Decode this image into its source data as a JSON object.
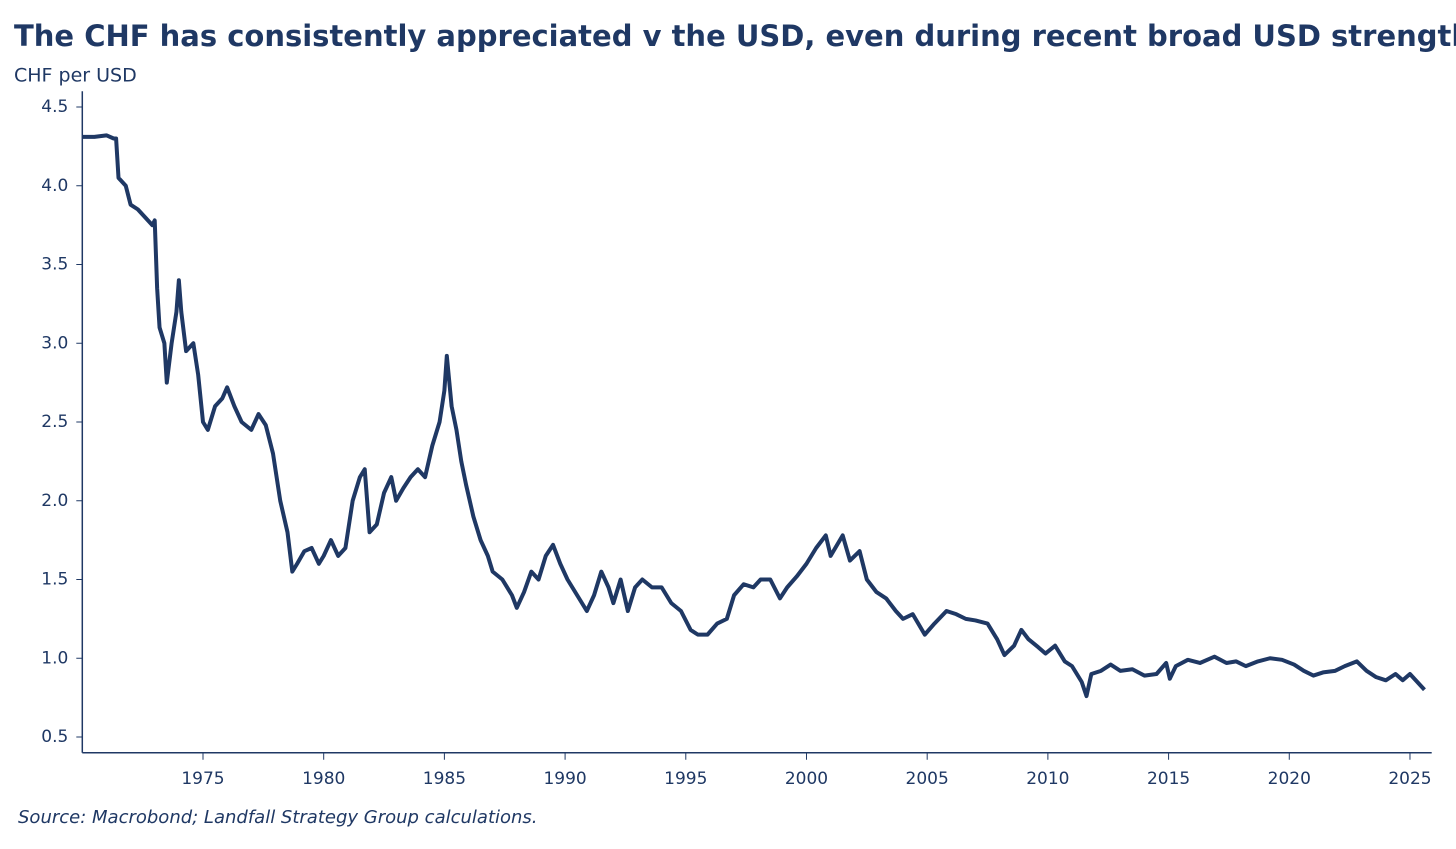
{
  "chart_data": {
    "type": "line",
    "title": "The CHF has consistently appreciated v the USD, even during recent broad USD strength",
    "y_label": "CHF per USD",
    "source": "Source: Macrobond; Landfall Strategy Group calculations.",
    "color": "#1f3864",
    "grid": false,
    "xlim": [
      1970,
      2025.9
    ],
    "ylim": [
      0.4,
      4.6
    ],
    "xticks": [
      1975,
      1980,
      1985,
      1990,
      1995,
      2000,
      2005,
      2010,
      2015,
      2020,
      2025
    ],
    "yticks": [
      0.5,
      {
        "value": 1,
        "label": "1.0"
      },
      1.5,
      {
        "value": 2,
        "label": "2.0"
      },
      2.5,
      {
        "value": 3,
        "label": "3.0"
      },
      3.5,
      {
        "value": 4,
        "label": "4.0"
      },
      4.5
    ],
    "x": [
      1970.0,
      1970.5,
      1971.0,
      1971.3,
      1971.4,
      1971.5,
      1971.8,
      1972.0,
      1972.3,
      1972.6,
      1972.9,
      1973.0,
      1973.1,
      1973.2,
      1973.4,
      1973.5,
      1973.7,
      1973.9,
      1974.0,
      1974.1,
      1974.3,
      1974.6,
      1974.8,
      1975.0,
      1975.2,
      1975.5,
      1975.8,
      1976.0,
      1976.3,
      1976.6,
      1977.0,
      1977.3,
      1977.6,
      1977.9,
      1978.2,
      1978.5,
      1978.7,
      1978.9,
      1979.2,
      1979.5,
      1979.8,
      1980.0,
      1980.3,
      1980.6,
      1980.9,
      1981.2,
      1981.5,
      1981.7,
      1981.9,
      1982.2,
      1982.5,
      1982.8,
      1983.0,
      1983.3,
      1983.6,
      1983.9,
      1984.2,
      1984.5,
      1984.8,
      1985.0,
      1985.1,
      1985.3,
      1985.5,
      1985.7,
      1985.9,
      1986.2,
      1986.5,
      1986.8,
      1987.0,
      1987.4,
      1987.8,
      1988.0,
      1988.3,
      1988.6,
      1988.9,
      1989.2,
      1989.5,
      1989.8,
      1990.1,
      1990.5,
      1990.9,
      1991.2,
      1991.5,
      1991.8,
      1992.0,
      1992.3,
      1992.6,
      1992.9,
      1993.2,
      1993.6,
      1994.0,
      1994.4,
      1994.8,
      1995.2,
      1995.5,
      1995.9,
      1996.3,
      1996.7,
      1997.0,
      1997.4,
      1997.8,
      1998.1,
      1998.5,
      1998.9,
      1999.2,
      1999.6,
      2000.0,
      2000.4,
      2000.8,
      2001.0,
      2001.5,
      2001.8,
      2002.2,
      2002.5,
      2002.9,
      2003.3,
      2003.7,
      2004.0,
      2004.4,
      2004.9,
      2005.3,
      2005.8,
      2006.2,
      2006.6,
      2007.0,
      2007.5,
      2007.9,
      2008.2,
      2008.6,
      2008.9,
      2009.2,
      2009.6,
      2009.9,
      2010.3,
      2010.7,
      2011.0,
      2011.4,
      2011.6,
      2011.8,
      2012.2,
      2012.6,
      2013.0,
      2013.5,
      2014.0,
      2014.5,
      2014.9,
      2015.05,
      2015.3,
      2015.8,
      2016.3,
      2016.9,
      2017.4,
      2017.8,
      2018.2,
      2018.7,
      2019.2,
      2019.7,
      2020.2,
      2020.6,
      2021.0,
      2021.4,
      2021.9,
      2022.3,
      2022.8,
      2023.2,
      2023.6,
      2024.0,
      2024.4,
      2024.7,
      2025.0,
      2025.3,
      2025.6
    ],
    "values": [
      4.31,
      4.31,
      4.32,
      4.3,
      4.3,
      4.05,
      4.0,
      3.88,
      3.85,
      3.8,
      3.75,
      3.78,
      3.35,
      3.1,
      3.0,
      2.75,
      3.0,
      3.2,
      3.4,
      3.2,
      2.95,
      3.0,
      2.8,
      2.5,
      2.45,
      2.6,
      2.65,
      2.72,
      2.6,
      2.5,
      2.45,
      2.55,
      2.48,
      2.3,
      2.0,
      1.8,
      1.55,
      1.6,
      1.68,
      1.7,
      1.6,
      1.65,
      1.75,
      1.65,
      1.7,
      2.0,
      2.15,
      2.2,
      1.8,
      1.85,
      2.05,
      2.15,
      2.0,
      2.08,
      2.15,
      2.2,
      2.15,
      2.35,
      2.5,
      2.7,
      2.92,
      2.6,
      2.45,
      2.25,
      2.1,
      1.9,
      1.75,
      1.65,
      1.55,
      1.5,
      1.4,
      1.32,
      1.42,
      1.55,
      1.5,
      1.65,
      1.72,
      1.6,
      1.5,
      1.4,
      1.3,
      1.4,
      1.55,
      1.45,
      1.35,
      1.5,
      1.3,
      1.45,
      1.5,
      1.45,
      1.45,
      1.35,
      1.3,
      1.18,
      1.15,
      1.15,
      1.22,
      1.25,
      1.4,
      1.47,
      1.45,
      1.5,
      1.5,
      1.38,
      1.45,
      1.52,
      1.6,
      1.7,
      1.78,
      1.65,
      1.78,
      1.62,
      1.68,
      1.5,
      1.42,
      1.38,
      1.3,
      1.25,
      1.28,
      1.15,
      1.22,
      1.3,
      1.28,
      1.25,
      1.24,
      1.22,
      1.12,
      1.02,
      1.08,
      1.18,
      1.12,
      1.07,
      1.03,
      1.08,
      0.98,
      0.95,
      0.85,
      0.76,
      0.9,
      0.92,
      0.96,
      0.92,
      0.93,
      0.89,
      0.9,
      0.97,
      0.87,
      0.95,
      0.99,
      0.97,
      1.01,
      0.97,
      0.98,
      0.95,
      0.98,
      1.0,
      0.99,
      0.96,
      0.92,
      0.89,
      0.91,
      0.92,
      0.95,
      0.98,
      0.92,
      0.88,
      0.86,
      0.9,
      0.86,
      0.9,
      0.85,
      0.8
    ]
  }
}
